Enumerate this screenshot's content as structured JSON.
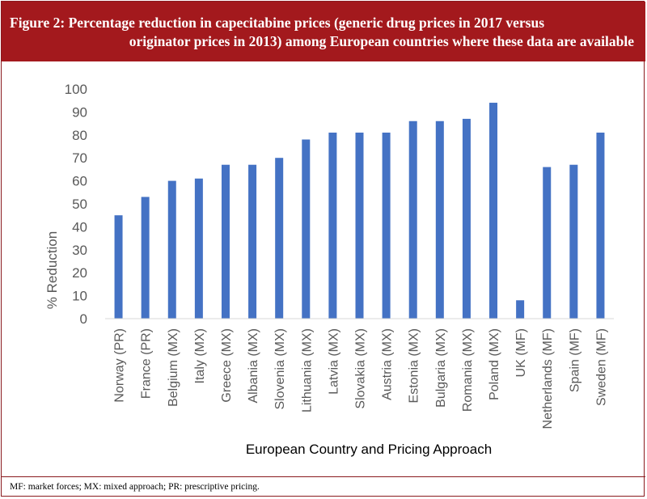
{
  "figure": {
    "title_line1": "Figure 2: Percentage reduction in capecitabine prices (generic drug prices in 2017 versus",
    "title_line2": "originator prices in 2013) among European countries where these data are available",
    "footnote": "MF: market forces; MX: mixed approach; PR: prescriptive pricing.",
    "header_color": "#a3191d",
    "bar_color": "#4472c4"
  },
  "chart_data": {
    "type": "bar",
    "xlabel": "European Country and Pricing Approach",
    "ylabel": "% Reduction",
    "ylim": [
      0,
      100
    ],
    "yticks": [
      0,
      10,
      20,
      30,
      40,
      50,
      60,
      70,
      80,
      90,
      100
    ],
    "grid": false,
    "categories": [
      "Norway (PR)",
      "France (PR)",
      "Belgium (MX)",
      "Italy (MX)",
      "Greece (MX)",
      "Albania (MX)",
      "Slovenia (MX)",
      "Lithuania (MX)",
      "Latvia (MX)",
      "Slovakia (MX)",
      "Austria (MX)",
      "Estonia (MX)",
      "Bulgaria (MX)",
      "Romania (MX)",
      "Poland (MX)",
      "UK (MF)",
      "Netherlands (MF)",
      "Spain (MF)",
      "Sweden (MF)"
    ],
    "values": [
      45,
      53,
      60,
      61,
      67,
      67,
      70,
      78,
      81,
      81,
      81,
      86,
      86,
      87,
      94,
      8,
      66,
      67,
      81
    ]
  }
}
